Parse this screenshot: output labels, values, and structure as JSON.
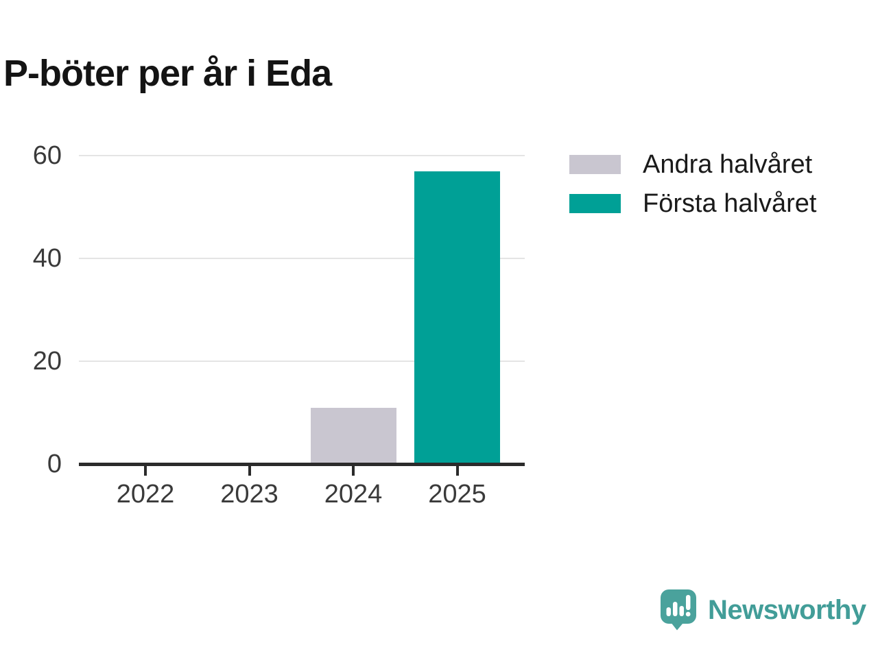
{
  "header": {
    "title": "P-böter per år i Eda"
  },
  "legend": {
    "items": [
      {
        "label": "Andra halvåret",
        "color": "#c9c6d0"
      },
      {
        "label": "Första halvåret",
        "color": "#00a096"
      }
    ]
  },
  "chart_data": {
    "type": "bar",
    "stacked": true,
    "title": "P-böter per år i Eda",
    "categories": [
      "2022",
      "2023",
      "2024",
      "2025"
    ],
    "series": [
      {
        "name": "Andra halvåret",
        "color": "#c9c6d0",
        "values": [
          0,
          0,
          11,
          0
        ]
      },
      {
        "name": "Första halvåret",
        "color": "#00a096",
        "values": [
          0,
          0,
          0,
          57
        ]
      }
    ],
    "xlabel": "",
    "ylabel": "",
    "ylim": [
      0,
      60
    ],
    "yticks": [
      0,
      20,
      40,
      60
    ],
    "grid": true,
    "legend_position": "right",
    "axis_color": "#2b2b2b",
    "gridline_color": "#e4e4e4",
    "tick_label_color": "#3a3a3a"
  },
  "branding": {
    "logo_text": "Newsworthy",
    "logo_icon": "newsworthy-speech-bubble-chart-icon",
    "logo_bubble_color": "#4aa29c",
    "logo_text_color": "#429d98"
  }
}
